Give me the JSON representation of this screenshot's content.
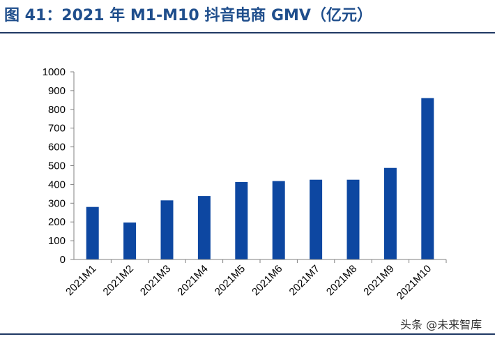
{
  "figure": {
    "title": "图 41：2021 年 M1-M10 抖音电商 GMV（亿元）"
  },
  "watermark": "头条 @未来智库",
  "chart_data": {
    "type": "bar",
    "title": "",
    "xlabel": "",
    "ylabel": "",
    "ylim": [
      0,
      1000
    ],
    "y_ticks": [
      0,
      100,
      200,
      300,
      400,
      500,
      600,
      700,
      800,
      900,
      1000
    ],
    "grid": false,
    "legend": "none",
    "bar_color": "#0d47a1",
    "categories": [
      "2021M1",
      "2021M2",
      "2021M3",
      "2021M4",
      "2021M5",
      "2021M6",
      "2021M7",
      "2021M8",
      "2021M9",
      "2021M10"
    ],
    "values": [
      280,
      197,
      315,
      338,
      413,
      418,
      425,
      425,
      488,
      860
    ]
  }
}
